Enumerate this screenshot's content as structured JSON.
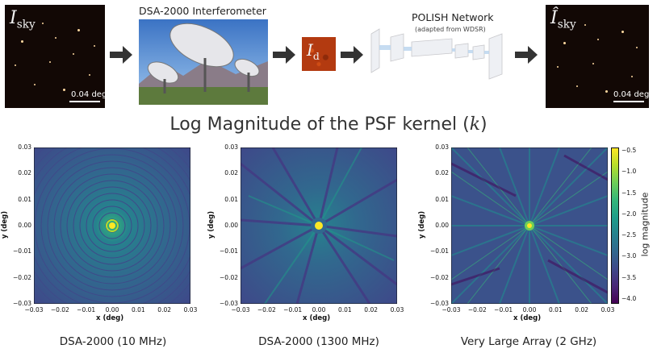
{
  "pipeline": {
    "sky_true_label": "I",
    "sky_true_sub": "sky",
    "scale_label": "0.04 deg",
    "interferometer_title": "DSA-2000 Interferometer",
    "dirty_label": "I",
    "dirty_sub": "d",
    "network_title": "POLISH Network",
    "network_subtitle": "(adapted from WDSR)",
    "sky_recon_label": "Î",
    "sky_recon_sub": "sky",
    "scale_label_right": "0.04 deg"
  },
  "section_title": "Log Magnitude of the PSF kernel (",
  "section_title_symbol": "k",
  "section_title_end": ")",
  "plots": [
    {
      "caption": "DSA-2000 (10 MHz)",
      "xlabel": "x (deg)",
      "ylabel": "y (deg)",
      "xticks": [
        "−0.03",
        "−0.02",
        "−0.01",
        "0.00",
        "0.01",
        "0.02",
        "0.03"
      ],
      "yticks": [
        "0.03",
        "0.02",
        "0.01",
        "0.00",
        "−0.01",
        "−0.02",
        "−0.03"
      ]
    },
    {
      "caption": "DSA-2000 (1300 MHz)",
      "xlabel": "x (deg)",
      "ylabel": "y (deg)",
      "xticks": [
        "−0.03",
        "−0.02",
        "−0.01",
        "0.00",
        "0.01",
        "0.02",
        "0.03"
      ],
      "yticks": [
        "0.03",
        "0.02",
        "0.01",
        "0.00",
        "−0.01",
        "−0.02",
        "−0.03"
      ]
    },
    {
      "caption": "Very Large Array (2 GHz)",
      "xlabel": "x (deg)",
      "ylabel": "y (deg)",
      "xticks": [
        "−0.03",
        "−0.02",
        "−0.01",
        "0.00",
        "0.01",
        "0.02",
        "0.03"
      ],
      "yticks": [
        "0.03",
        "0.02",
        "0.01",
        "0.00",
        "−0.01",
        "−0.02",
        "−0.03"
      ]
    }
  ],
  "colorbar": {
    "label": "log magnitude",
    "ticks": [
      "−0.5",
      "−1.0",
      "−1.5",
      "−2.0",
      "−2.5",
      "−3.0",
      "−3.5",
      "−4.0"
    ],
    "colors": [
      "#fde725",
      "#b5de2b",
      "#6ece58",
      "#35b779",
      "#1f9e89",
      "#26828e",
      "#31688e",
      "#3e4989",
      "#482878",
      "#440154"
    ]
  }
}
